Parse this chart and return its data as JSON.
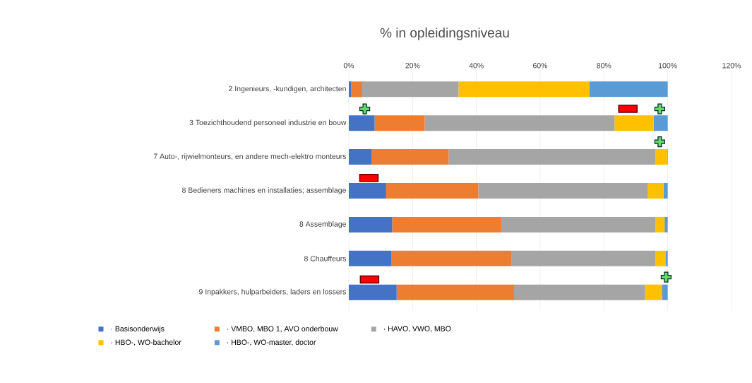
{
  "chart_data": {
    "type": "bar",
    "orientation": "horizontal",
    "stacked": true,
    "title": "% in opleidingsniveau",
    "categories": [
      "2 Ingenieurs, -kundigen, architecten",
      "3 Toezichthoudend personeel industrie en bouw",
      "7 Auto-, rijwielmonteurs, en andere mech-elektro monteurs",
      "8 Bedieners machines en installaties; assemblage",
      "8 Assemblage",
      "8 Chauffeurs",
      "9 Inpakkers, hulparbeiders, laders en lossers"
    ],
    "series": [
      {
        "name": "· Basisonderwijs",
        "color": "#4472c4",
        "values": [
          0.7,
          8.1,
          7.2,
          11.7,
          13.6,
          13.3,
          15.0
        ]
      },
      {
        "name": "· VMBO, MBO 1, AVO onderbouw",
        "color": "#ed7d31",
        "values": [
          3.5,
          15.7,
          24.1,
          28.9,
          34.2,
          37.8,
          36.8
        ]
      },
      {
        "name": "· HAVO, VWO, MBO",
        "color": "#a5a5a5",
        "values": [
          30.2,
          59.5,
          64.9,
          53.2,
          48.4,
          45.1,
          41.1
        ]
      },
      {
        "name": "· HBO-, WO-bachelor",
        "color": "#ffc000",
        "values": [
          41.1,
          12.3,
          3.6,
          4.9,
          2.8,
          3.2,
          5.4
        ]
      },
      {
        "name": "· HBO-, WO-master, doctor",
        "color": "#5b9bd5",
        "values": [
          24.5,
          4.4,
          0.2,
          1.3,
          1.0,
          0.6,
          1.7
        ]
      }
    ],
    "xlim": [
      0,
      120
    ],
    "xticks": [
      {
        "value": 0,
        "label": "0%"
      },
      {
        "value": 20,
        "label": "20%"
      },
      {
        "value": 40,
        "label": "40%"
      },
      {
        "value": 60,
        "label": "60%"
      },
      {
        "value": 80,
        "label": "80%"
      },
      {
        "value": 100,
        "label": "100%"
      },
      {
        "value": 120,
        "label": "120%"
      }
    ],
    "grid": "x",
    "legend": "bottom"
  }
}
